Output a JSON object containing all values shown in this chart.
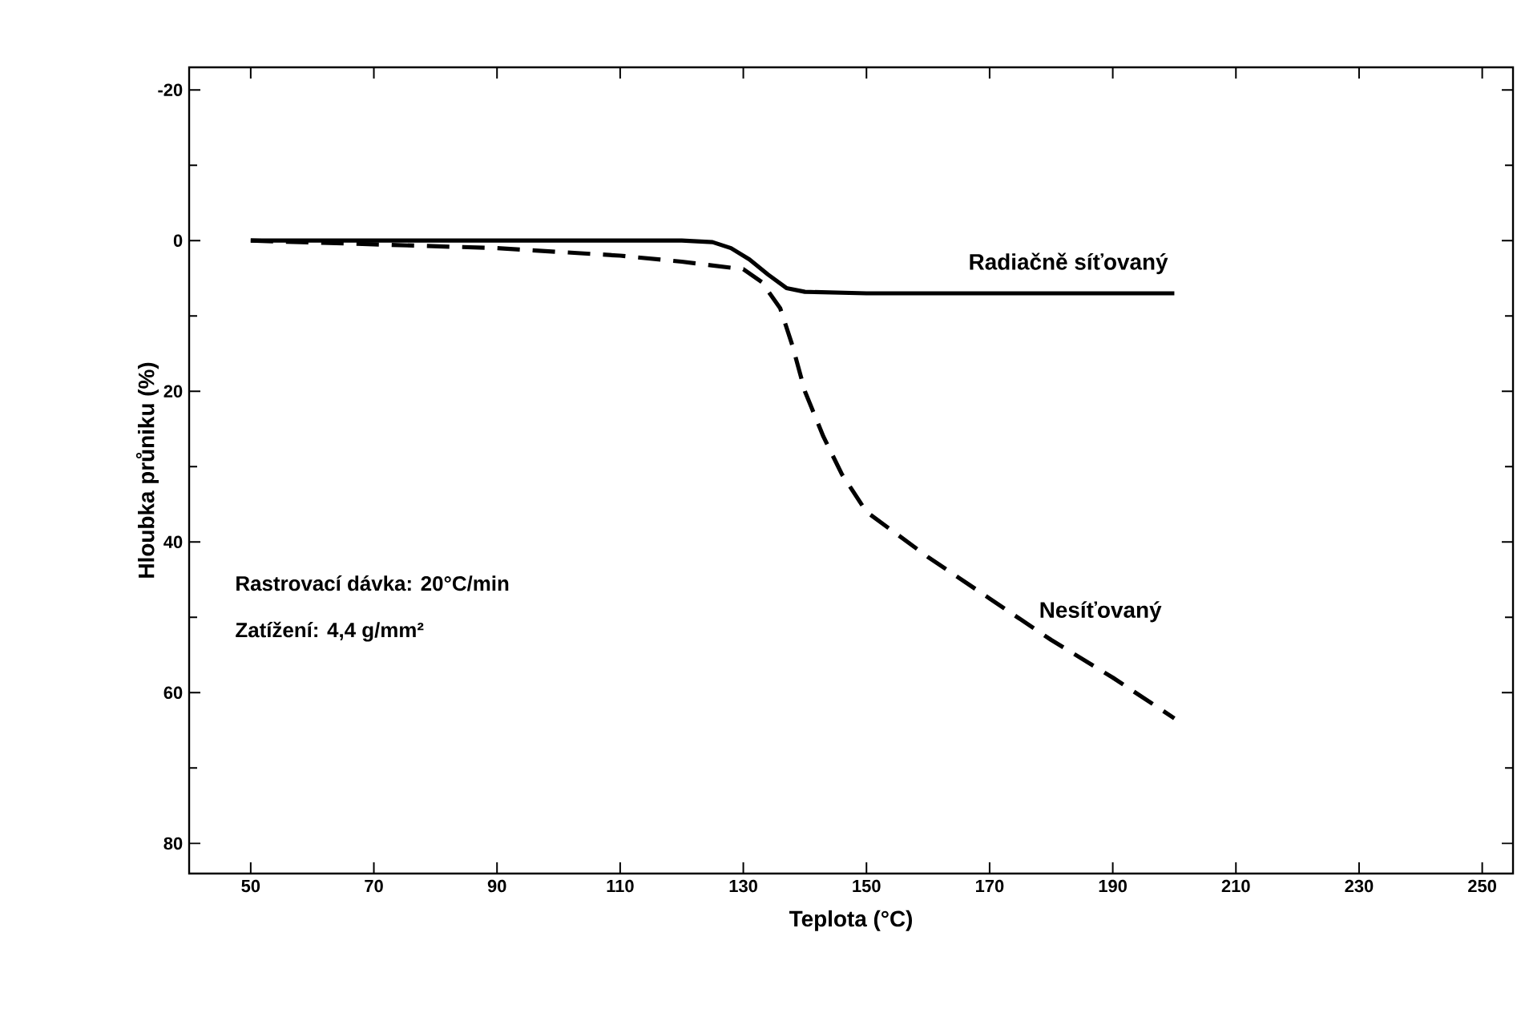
{
  "chart_data": {
    "type": "line",
    "xlabel": "Teplota (°C)",
    "ylabel": "Hloubka průniku (%)",
    "xlim": [
      40,
      255
    ],
    "ylim": [
      84,
      -23
    ],
    "xticks": [
      50,
      70,
      90,
      110,
      130,
      150,
      170,
      190,
      210,
      230,
      250
    ],
    "yticks": [
      -20,
      0,
      20,
      40,
      60,
      80
    ],
    "marker": "none",
    "grid": false,
    "annotations": [
      "Rastrovací dávka:  20°C/min",
      "Zatížení:  4,4 g/mm²"
    ],
    "series": [
      {
        "name": "Radiačně síťovaný",
        "color": "#000000",
        "line_style": "solid",
        "x": [
          50,
          70,
          90,
          110,
          120,
          125,
          128,
          131,
          134,
          137,
          140,
          150,
          170,
          190,
          200
        ],
        "values": [
          0,
          0,
          0,
          0,
          0,
          0.2,
          1,
          2.5,
          4.5,
          6.3,
          6.8,
          7,
          7,
          7,
          7
        ]
      },
      {
        "name": "Nesíťovaný",
        "color": "#000000",
        "line_style": "dashed",
        "x": [
          50,
          70,
          90,
          110,
          120,
          130,
          133,
          136,
          138,
          140,
          143,
          146,
          150,
          160,
          170,
          180,
          190,
          200
        ],
        "values": [
          0,
          0.5,
          1,
          2,
          2.8,
          3.8,
          5.5,
          9,
          14,
          20,
          26,
          31,
          36,
          42,
          47.5,
          53,
          58,
          63.4
        ]
      }
    ]
  }
}
